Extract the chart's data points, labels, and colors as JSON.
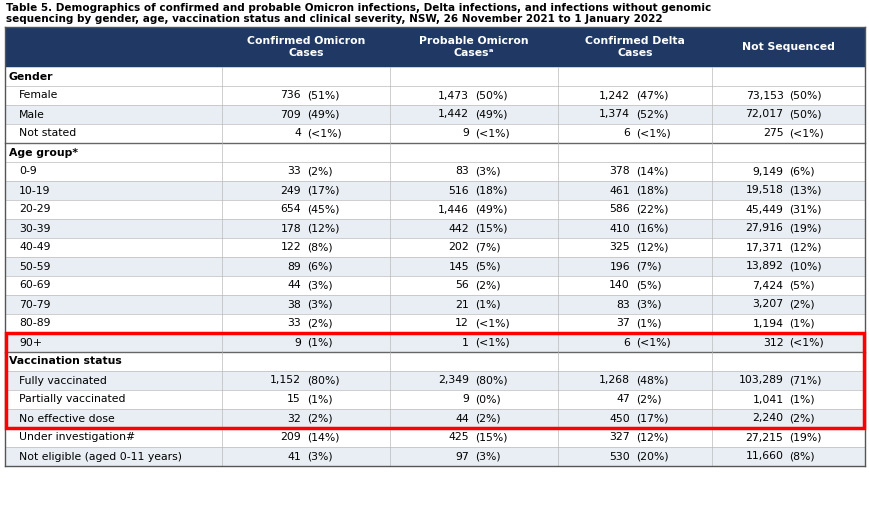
{
  "title_line1": "Table 5. Demographics of confirmed and probable Omicron infections, Delta infections, and infections without genomic",
  "title_line2": "sequencing by gender, age, vaccination status and clinical severity, NSW, 26 November 2021 to 1 January 2022",
  "col_headers": [
    "Confirmed Omicron\nCases",
    "Probable Omicron\nCasesᵃ",
    "Confirmed Delta\nCases",
    "Not Sequenced"
  ],
  "header_bg": "#1F3864",
  "header_fg": "#FFFFFF",
  "row_bg_even": "#E8EEF4",
  "row_bg_odd": "#FFFFFF",
  "section_bg": "#FFFFFF",
  "highlight_border": "#FF0000",
  "rows": [
    {
      "label": "Gender",
      "section": true,
      "values": [
        [
          "",
          ""
        ],
        [
          "",
          ""
        ],
        [
          "",
          ""
        ],
        [
          "",
          ""
        ]
      ]
    },
    {
      "label": "Female",
      "section": false,
      "indent": true,
      "values": [
        [
          "736",
          "(51%)"
        ],
        [
          "1,473",
          "(50%)"
        ],
        [
          "1,242",
          "(47%)"
        ],
        [
          "73,153",
          "(50%)"
        ]
      ]
    },
    {
      "label": "Male",
      "section": false,
      "indent": true,
      "values": [
        [
          "709",
          "(49%)"
        ],
        [
          "1,442",
          "(49%)"
        ],
        [
          "1,374",
          "(52%)"
        ],
        [
          "72,017",
          "(50%)"
        ]
      ]
    },
    {
      "label": "Not stated",
      "section": false,
      "indent": true,
      "values": [
        [
          "4",
          "(<1%)"
        ],
        [
          "9",
          "(<1%)"
        ],
        [
          "6",
          "(<1%)"
        ],
        [
          "275",
          "(<1%)"
        ]
      ]
    },
    {
      "label": "Age group*",
      "section": true,
      "values": [
        [
          "",
          ""
        ],
        [
          "",
          ""
        ],
        [
          "",
          ""
        ],
        [
          "",
          ""
        ]
      ]
    },
    {
      "label": "0-9",
      "section": false,
      "indent": true,
      "values": [
        [
          "33",
          "(2%)"
        ],
        [
          "83",
          "(3%)"
        ],
        [
          "378",
          "(14%)"
        ],
        [
          "9,149",
          "(6%)"
        ]
      ]
    },
    {
      "label": "10-19",
      "section": false,
      "indent": true,
      "values": [
        [
          "249",
          "(17%)"
        ],
        [
          "516",
          "(18%)"
        ],
        [
          "461",
          "(18%)"
        ],
        [
          "19,518",
          "(13%)"
        ]
      ]
    },
    {
      "label": "20-29",
      "section": false,
      "indent": true,
      "values": [
        [
          "654",
          "(45%)"
        ],
        [
          "1,446",
          "(49%)"
        ],
        [
          "586",
          "(22%)"
        ],
        [
          "45,449",
          "(31%)"
        ]
      ]
    },
    {
      "label": "30-39",
      "section": false,
      "indent": true,
      "values": [
        [
          "178",
          "(12%)"
        ],
        [
          "442",
          "(15%)"
        ],
        [
          "410",
          "(16%)"
        ],
        [
          "27,916",
          "(19%)"
        ]
      ]
    },
    {
      "label": "40-49",
      "section": false,
      "indent": true,
      "values": [
        [
          "122",
          "(8%)"
        ],
        [
          "202",
          "(7%)"
        ],
        [
          "325",
          "(12%)"
        ],
        [
          "17,371",
          "(12%)"
        ]
      ]
    },
    {
      "label": "50-59",
      "section": false,
      "indent": true,
      "values": [
        [
          "89",
          "(6%)"
        ],
        [
          "145",
          "(5%)"
        ],
        [
          "196",
          "(7%)"
        ],
        [
          "13,892",
          "(10%)"
        ]
      ]
    },
    {
      "label": "60-69",
      "section": false,
      "indent": true,
      "values": [
        [
          "44",
          "(3%)"
        ],
        [
          "56",
          "(2%)"
        ],
        [
          "140",
          "(5%)"
        ],
        [
          "7,424",
          "(5%)"
        ]
      ]
    },
    {
      "label": "70-79",
      "section": false,
      "indent": true,
      "values": [
        [
          "38",
          "(3%)"
        ],
        [
          "21",
          "(1%)"
        ],
        [
          "83",
          "(3%)"
        ],
        [
          "3,207",
          "(2%)"
        ]
      ]
    },
    {
      "label": "80-89",
      "section": false,
      "indent": true,
      "values": [
        [
          "33",
          "(2%)"
        ],
        [
          "12",
          "(<1%)"
        ],
        [
          "37",
          "(1%)"
        ],
        [
          "1,194",
          "(1%)"
        ]
      ]
    },
    {
      "label": "90+",
      "section": false,
      "indent": true,
      "values": [
        [
          "9",
          "(1%)"
        ],
        [
          "1",
          "(<1%)"
        ],
        [
          "6",
          "(<1%)"
        ],
        [
          "312",
          "(<1%)"
        ]
      ]
    },
    {
      "label": "Vaccination status",
      "section": true,
      "highlight": true,
      "values": [
        [
          "",
          ""
        ],
        [
          "",
          ""
        ],
        [
          "",
          ""
        ],
        [
          "",
          ""
        ]
      ]
    },
    {
      "label": "Fully vaccinated",
      "section": false,
      "indent": true,
      "highlight": true,
      "values": [
        [
          "1,152",
          "(80%)"
        ],
        [
          "2,349",
          "(80%)"
        ],
        [
          "1,268",
          "(48%)"
        ],
        [
          "103,289",
          "(71%)"
        ]
      ]
    },
    {
      "label": "Partially vaccinated",
      "section": false,
      "indent": true,
      "highlight": true,
      "values": [
        [
          "15",
          "(1%)"
        ],
        [
          "9",
          "(0%)"
        ],
        [
          "47",
          "(2%)"
        ],
        [
          "1,041",
          "(1%)"
        ]
      ]
    },
    {
      "label": "No effective dose",
      "section": false,
      "indent": true,
      "highlight": true,
      "values": [
        [
          "32",
          "(2%)"
        ],
        [
          "44",
          "(2%)"
        ],
        [
          "450",
          "(17%)"
        ],
        [
          "2,240",
          "(2%)"
        ]
      ]
    },
    {
      "label": "Under investigation#",
      "section": false,
      "indent": true,
      "values": [
        [
          "209",
          "(14%)"
        ],
        [
          "425",
          "(15%)"
        ],
        [
          "327",
          "(12%)"
        ],
        [
          "27,215",
          "(19%)"
        ]
      ]
    },
    {
      "label": "Not eligible (aged 0-11 years)",
      "section": false,
      "indent": true,
      "values": [
        [
          "41",
          "(3%)"
        ],
        [
          "97",
          "(3%)"
        ],
        [
          "530",
          "(20%)"
        ],
        [
          "11,660",
          "(8%)"
        ]
      ]
    }
  ]
}
